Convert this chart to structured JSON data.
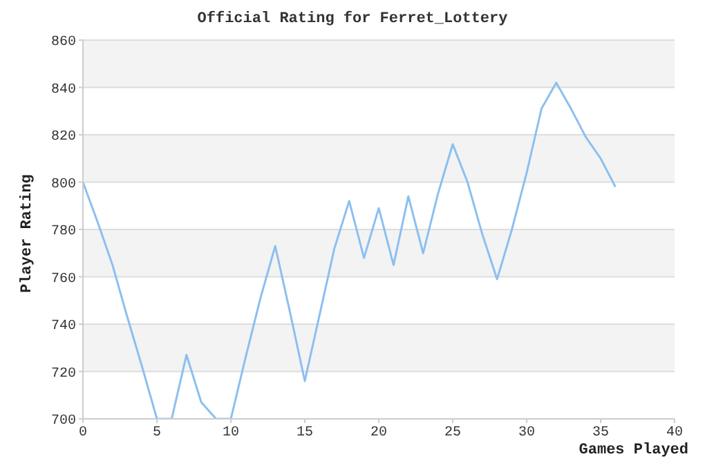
{
  "chart_data": {
    "type": "line",
    "title": "Official Rating for Ferret_Lottery",
    "xlabel": "Games Played",
    "ylabel": "Player Rating",
    "x": [
      0,
      1,
      2,
      3,
      4,
      5,
      6,
      7,
      8,
      9,
      10,
      11,
      12,
      13,
      14,
      15,
      16,
      17,
      18,
      19,
      20,
      21,
      22,
      23,
      24,
      25,
      26,
      27,
      28,
      29,
      30,
      31,
      32,
      33,
      34,
      35,
      36
    ],
    "series": [
      {
        "color": "#8cbff0",
        "values": [
          800,
          783,
          765,
          743,
          722,
          700,
          700,
          727,
          707,
          700,
          700,
          726,
          751,
          773,
          745,
          716,
          744,
          772,
          792,
          768,
          789,
          765,
          794,
          770,
          795,
          816,
          800,
          778,
          759,
          780,
          804,
          831,
          842,
          831,
          819,
          810,
          798
        ]
      }
    ],
    "xlim": [
      0,
      40
    ],
    "xticks": [
      0,
      5,
      10,
      15,
      20,
      25,
      30,
      35,
      40
    ],
    "ylim": [
      700,
      860
    ],
    "yticks": [
      700,
      720,
      740,
      760,
      780,
      800,
      820,
      840,
      860
    ],
    "grid": "y",
    "legend": false,
    "marker": "none",
    "line_style": "solid"
  }
}
